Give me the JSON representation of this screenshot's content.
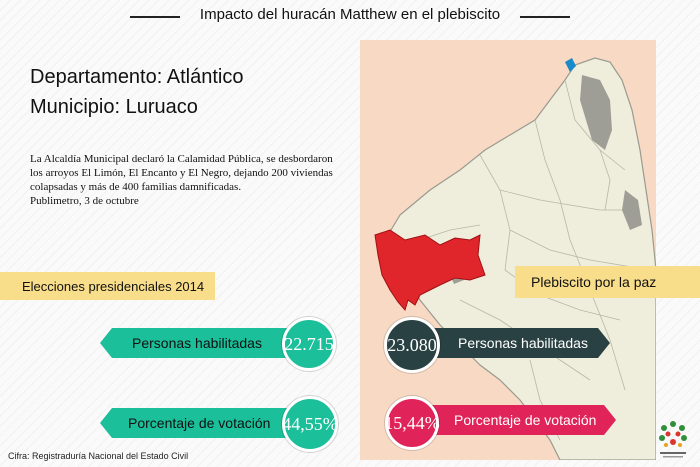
{
  "title": "Impacto del huracán Matthew en el plebiscito",
  "department": "Departamento: Atlántico",
  "municipality": "Municipio: Luruaco",
  "description_lines": [
    "La Alcaldía Municipal declaró la Calamidad Pública, se desbordaron",
    "los arroyos El Limón, El Encanto y El Negro, dejando 200 viviendas",
    "colapsadas  y más de 400 familias damnificadas.",
    "Publimetro, 3 de octubre"
  ],
  "elections_2014": {
    "label": "Elecciones presidenciales 2014",
    "eligible_label": "Personas habilitadas",
    "eligible_value": "22.715",
    "turnout_label": "Porcentaje de votación",
    "turnout_value": "44,55%"
  },
  "plebiscite": {
    "label": "Plebiscito por la paz",
    "eligible_label": "Personas habilitadas",
    "eligible_value": "23.080",
    "turnout_label": "Porcentaje de votación",
    "turnout_value": "15,44%"
  },
  "source": "Cifra: Registraduría Nacional del Estado Civil",
  "colors": {
    "teal": "#1bbf9a",
    "dark_slate": "#2a4143",
    "pink_red": "#e0245a",
    "highlight_yellow": "#f8dd8a",
    "map_land": "#efeedc",
    "map_sea": "#f7d9c4",
    "municipality_highlight": "#e0262b"
  },
  "icons": [
    "colombia-map-icon",
    "logo-icon"
  ]
}
